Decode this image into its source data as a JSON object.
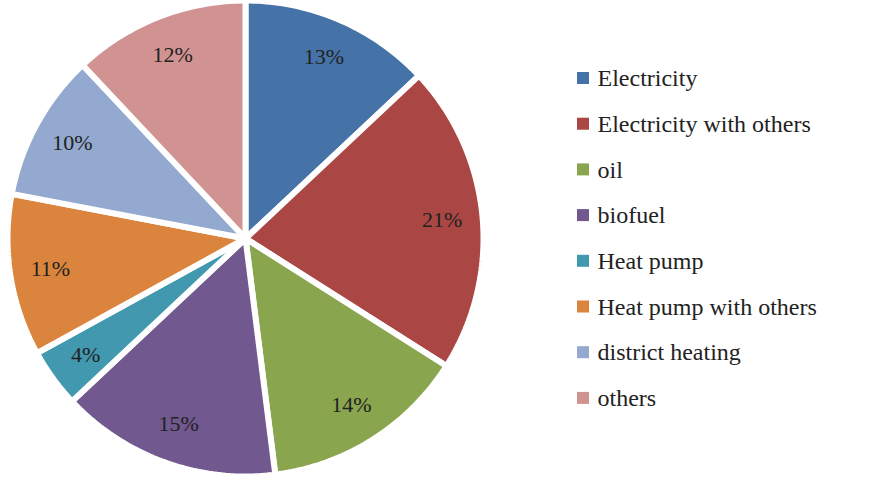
{
  "chart_data": {
    "type": "pie",
    "categories": [
      "Electricity",
      "Electricity with others",
      "oil",
      "biofuel",
      "Heat pump",
      "Heat pump with others",
      "district heating",
      "others"
    ],
    "values": [
      13,
      21,
      14,
      15,
      4,
      11,
      10,
      12
    ],
    "value_labels": [
      "13%",
      "21%",
      "14%",
      "15%",
      "4%",
      "11%",
      "10%",
      "12%"
    ],
    "colors": [
      "#4572a7",
      "#aa4643",
      "#89a54e",
      "#71588f",
      "#4198af",
      "#db843d",
      "#93a9cf",
      "#d19392"
    ],
    "data_labels": true,
    "legend": "right"
  }
}
